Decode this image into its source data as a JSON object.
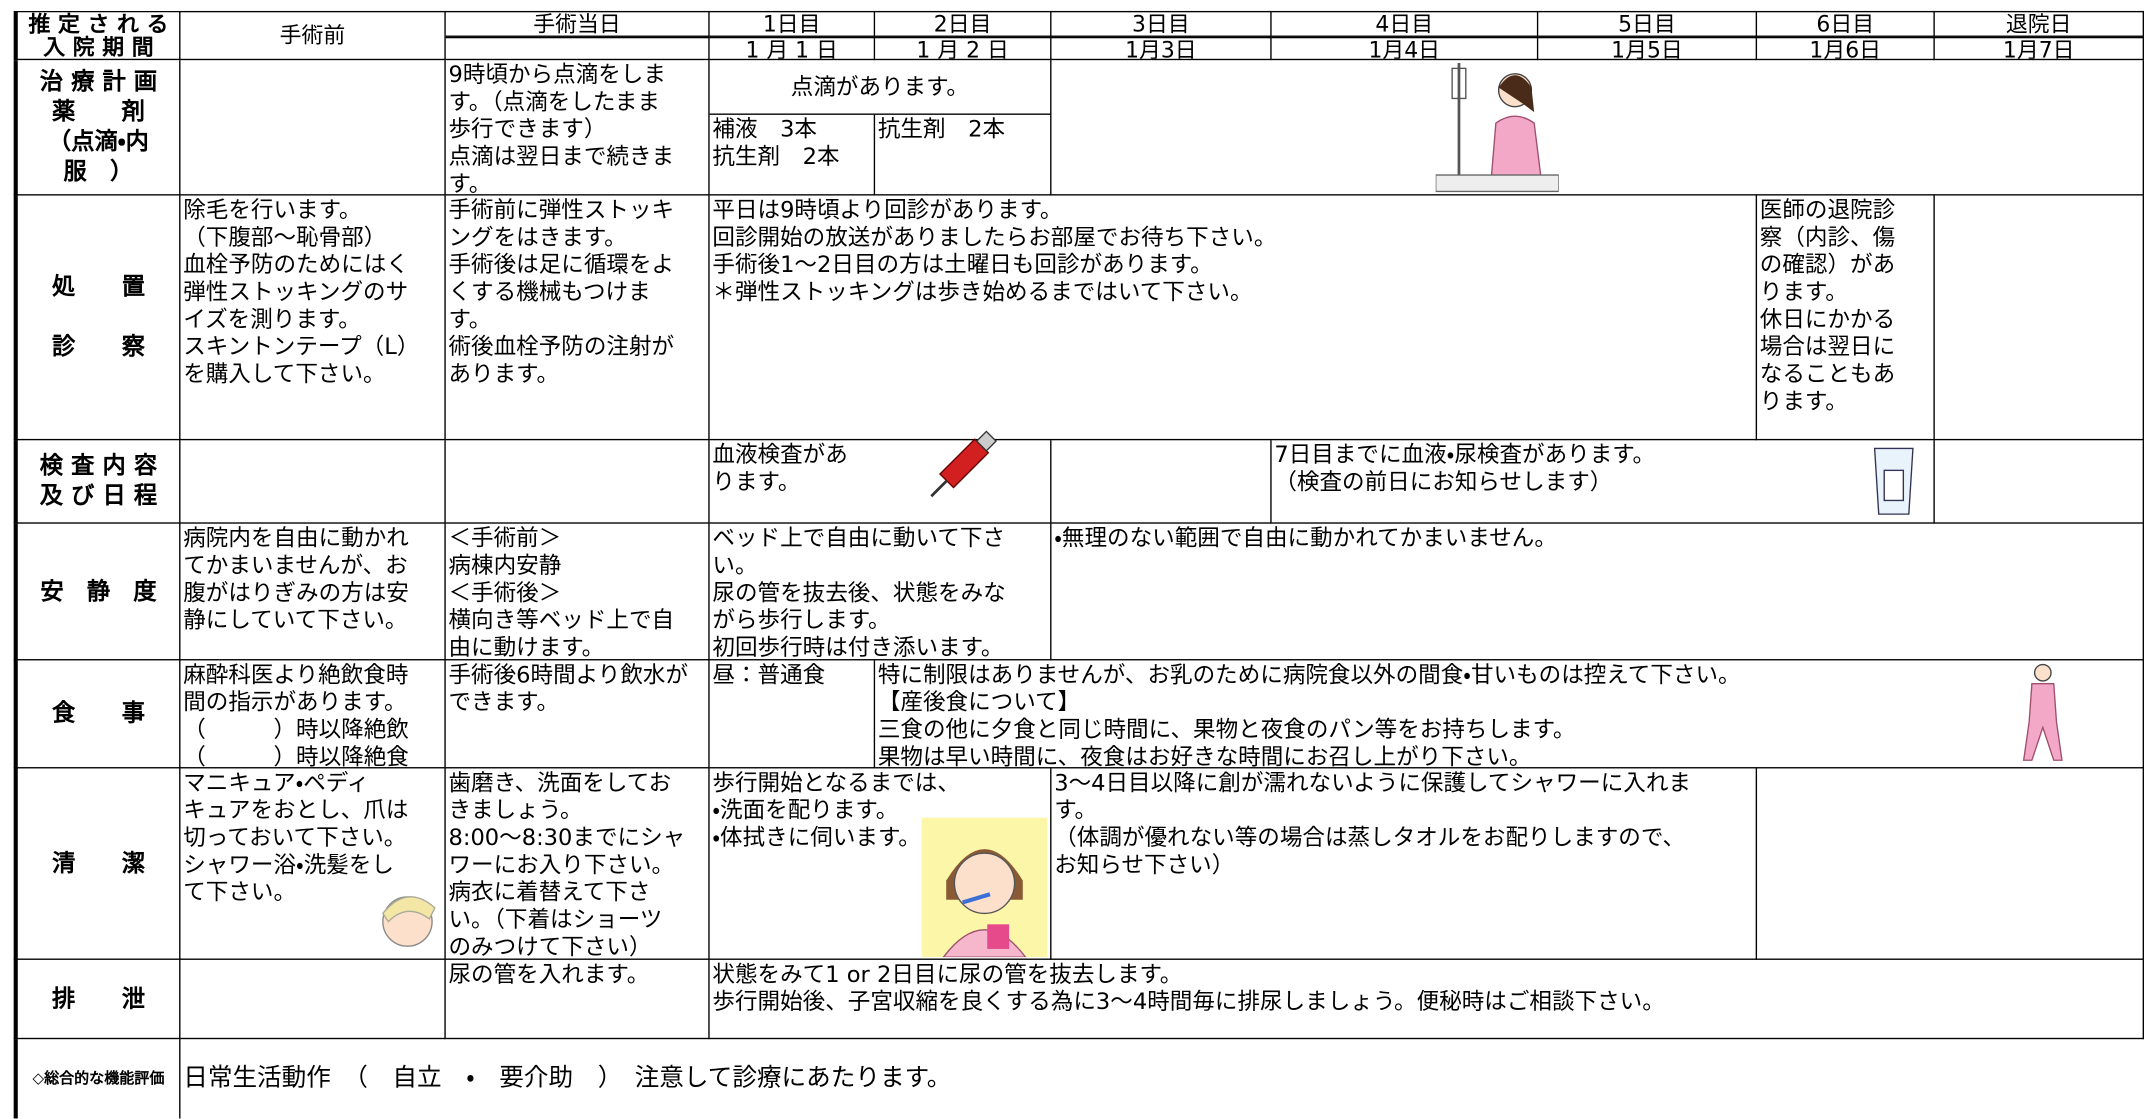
{
  "header": {
    "period_label": "推 定 さ れ る\n入 院 期 間",
    "days": [
      {
        "label": "手術前"
      },
      {
        "label": "手術当日"
      },
      {
        "label": "1日目",
        "date": "1 月 1 日"
      },
      {
        "label": "2日目",
        "date": "1 月 2 日"
      },
      {
        "label": "3日目",
        "date": "1月3日"
      },
      {
        "label": "4日目",
        "date": "1月4日"
      },
      {
        "label": "5日目",
        "date": "1月5日"
      },
      {
        "label": "6日目",
        "date": "1月6日"
      },
      {
        "label": "退院日",
        "date": "1月7日"
      }
    ]
  },
  "rows": [
    {
      "label": "治 療 計 画\n薬　　剤\n（点滴・内\n服　）",
      "cells": [
        "9時頃から点滴をしま\nす。（点滴をしたまま\n歩行できます）\n点滴は翌日まで続きま\nす。",
        "点滴があります。",
        "補液　3本\n抗生剤　2本",
        "抗生剤　2本"
      ]
    },
    {
      "label": "処　　置\n\n診　　察",
      "cells": [
        "除毛を行います。\n（下腹部～恥骨部）\n血栓予防のためにはく\n弾性ストッキングのサ\nイズを測ります。\nスキントンテープ（L）\nを購入して下さい。",
        "手術前に弾性ストッキ\nングをはきます。\n手術後は足に循環をよ\nくする機械もつけま\nす。\n術後血栓予防の注射が\nあります。",
        "平日は9時頃より回診があります。\n回診開始の放送がありましたらお部屋でお待ち下さい。\n手術後1～2日目の方は土曜日も回診があります。\n＊弾性ストッキングは歩き始めるまではいて下さい。",
        "医師の退院診\n察（内診、傷\nの確認）があ\nります。\n休日にかかる\n場合は翌日に\nなることもあ\nります。"
      ]
    },
    {
      "label": "検 査 内 容\n及 び 日 程",
      "cells": [
        "血液検査があ\nります。",
        "7日目までに血液・尿検査があります。\n（検査の前日にお知らせします）"
      ]
    },
    {
      "label": "安　静　度",
      "cells": [
        "病院内を自由に動かれ\nてかまいませんが、お\n腹がはりぎみの方は安\n静にしていて下さい。",
        "＜手術前＞\n病棟内安静\n＜手術後＞\n横向き等ベッド上で自\n由に動けます。",
        "ベッド上で自由に動いて下さ\nい。\n尿の管を抜去後、状態をみな\nがら歩行します。\n初回歩行時は付き添います。",
        "・無理のない範囲で自由に動かれてかまいません。"
      ]
    },
    {
      "label": "食　　事",
      "cells": [
        "麻酔科医より絶飲食時\n間の指示があります。\n（　　　）時以降絶飲\n（　　　）時以降絶食",
        "手術後6時間より飲水が\nできます。",
        "昼：普通食",
        "特に制限はありませんが、お乳のために病院食以外の間食・甘いものは控えて下さい。\n【産後食について】\n三食の他に夕食と同じ時間に、果物と夜食のパン等をお持ちします。\n果物は早い時間に、夜食はお好きな時間にお召し上がり下さい。"
      ]
    },
    {
      "label": "清　　潔",
      "cells": [
        "マニキュア・ペディ\nキュアをおとし、爪は\n切っておいて下さい。\nシャワー浴・洗髪をし\nて下さい。",
        "歯磨き、洗面をしてお\nきましょう。\n8:00～8:30までにシャ\nワーにお入り下さい。\n病衣に着替えて下さ\nい。（下着はショーツ\nのみつけて下さい）",
        "歩行開始となるまでは、\n・洗面を配ります。\n・体拭きに伺います。",
        "3～4日目以降に創が濡れないように保護してシャワーに入れま\nす。\n（体調が優れない等の場合は蒸しタオルをお配りしますので、\nお知らせ下さい）"
      ]
    },
    {
      "label": "排　　泄",
      "cells": [
        "尿の管を入れます。",
        "状態をみて1 or 2日目に尿の管を抜去します。\n歩行開始後、子宮収縮を良くする為に3～4時間毎に排尿しましょう。便秘時はご相談下さい。"
      ]
    },
    {
      "label": "◇総合的な機能評価",
      "cells": [
        "日常生活動作　（　自立　・　要介助　）　注意して診療にあたります。"
      ]
    }
  ]
}
